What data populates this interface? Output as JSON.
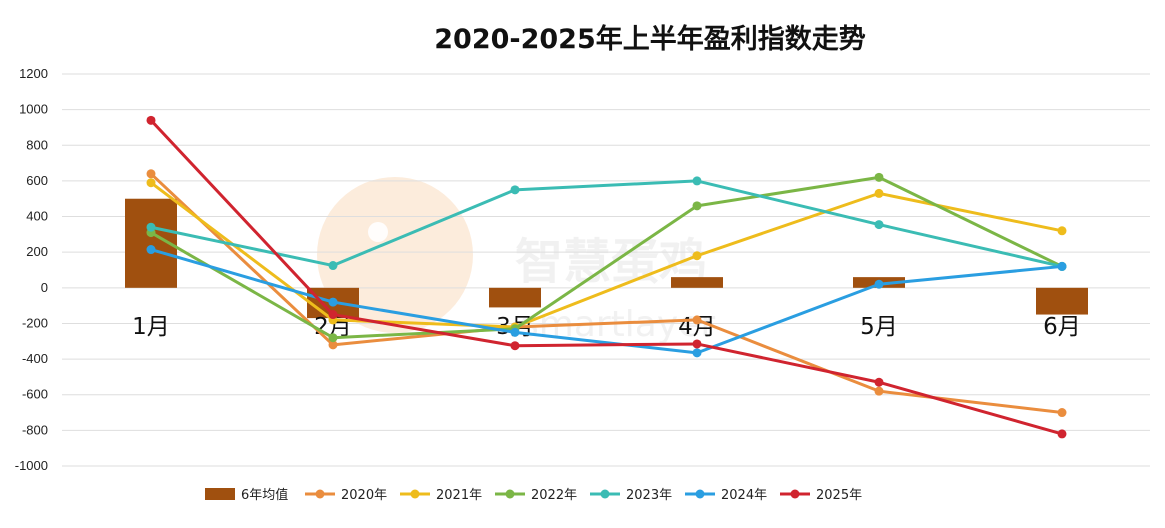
{
  "chart_data": {
    "type": "bar+line",
    "title": "2020-2025年上半年盈利指数走势",
    "categories": [
      "1月",
      "2月",
      "3月",
      "4月",
      "5月",
      "6月"
    ],
    "ylim": [
      -1000,
      1200
    ],
    "yticks": [
      1200,
      1000,
      800,
      600,
      400,
      200,
      0,
      -200,
      -400,
      -600,
      -800,
      -1000
    ],
    "grid": true,
    "legend_position": "bottom",
    "bar_series": {
      "name": "6年均值",
      "color": "#a0500f",
      "values": [
        500,
        -170,
        -110,
        60,
        60,
        -150
      ]
    },
    "series": [
      {
        "name": "2020年",
        "color": "#ea8d3e",
        "values": [
          640,
          -320,
          -220,
          -180,
          -580,
          -700
        ]
      },
      {
        "name": "2021年",
        "color": "#eebc1c",
        "values": [
          590,
          -180,
          -220,
          180,
          530,
          320
        ]
      },
      {
        "name": "2022年",
        "color": "#7bb646",
        "values": [
          310,
          -280,
          -230,
          460,
          620,
          120
        ]
      },
      {
        "name": "2023年",
        "color": "#3bbcb4",
        "values": [
          340,
          125,
          550,
          600,
          355,
          120
        ]
      },
      {
        "name": "2024年",
        "color": "#2a9ee1",
        "values": [
          215,
          -80,
          -250,
          -365,
          20,
          120
        ]
      },
      {
        "name": "2025年",
        "color": "#d0242f",
        "values": [
          940,
          -150,
          -325,
          -315,
          -530,
          -820
        ]
      }
    ],
    "annotations": [
      "smartlayer"
    ]
  },
  "watermark": {
    "brand": "智慧蛋鸡",
    "sub": "smartlayer"
  }
}
